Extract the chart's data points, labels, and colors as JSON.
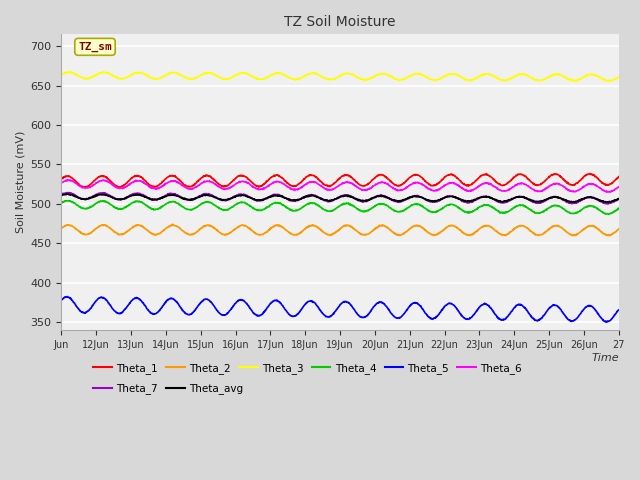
{
  "title": "TZ Soil Moisture",
  "ylabel": "Soil Moisture (mV)",
  "xlabel": "Time",
  "annotation": "TZ_sm",
  "ylim": [
    340,
    715
  ],
  "yticks": [
    350,
    400,
    450,
    500,
    550,
    600,
    650,
    700
  ],
  "x_tick_labels": [
    "Jun",
    "12Jun",
    "13Jun",
    "14Jun",
    "15Jun",
    "16Jun",
    "17Jun",
    "18Jun",
    "19Jun",
    "20Jun",
    "21Jun",
    "22Jun",
    "23Jun",
    "24Jun",
    "25Jun",
    "26Jun",
    "27"
  ],
  "series": {
    "Theta_1": {
      "color": "#ff0000",
      "base": 528,
      "amplitude": 7,
      "trend": 3,
      "freq_per_day": 1.0,
      "phase": 0.5
    },
    "Theta_2": {
      "color": "#ff9900",
      "base": 467,
      "amplitude": 6,
      "trend": -1,
      "freq_per_day": 1.0,
      "phase": 0.3
    },
    "Theta_3": {
      "color": "#ffff00",
      "base": 663,
      "amplitude": 4,
      "trend": -3,
      "freq_per_day": 1.0,
      "phase": 0.2
    },
    "Theta_4": {
      "color": "#00cc00",
      "base": 499,
      "amplitude": 5,
      "trend": -7,
      "freq_per_day": 1.0,
      "phase": 0.4
    },
    "Theta_5": {
      "color": "#0000ff",
      "base": 372,
      "amplitude": 10,
      "trend": -12,
      "freq_per_day": 1.0,
      "phase": 0.6
    },
    "Theta_6": {
      "color": "#ff00ff",
      "base": 525,
      "amplitude": 5,
      "trend": -5,
      "freq_per_day": 1.0,
      "phase": 0.3
    },
    "Theta_7": {
      "color": "#9900cc",
      "base": 510,
      "amplitude": 4,
      "trend": -6,
      "freq_per_day": 1.0,
      "phase": 0.5
    },
    "Theta_avg": {
      "color": "#000000",
      "base": 509,
      "amplitude": 3,
      "trend": -4,
      "freq_per_day": 1.0,
      "phase": 0.5
    }
  },
  "legend_row1": [
    "Theta_1",
    "Theta_2",
    "Theta_3",
    "Theta_4",
    "Theta_5",
    "Theta_6"
  ],
  "legend_row2": [
    "Theta_7",
    "Theta_avg"
  ],
  "background_color": "#d8d8d8",
  "plot_bg_color": "#f0f0f0",
  "grid_color": "#ffffff",
  "annotation_bg": "#ffffcc",
  "annotation_fg": "#880000"
}
